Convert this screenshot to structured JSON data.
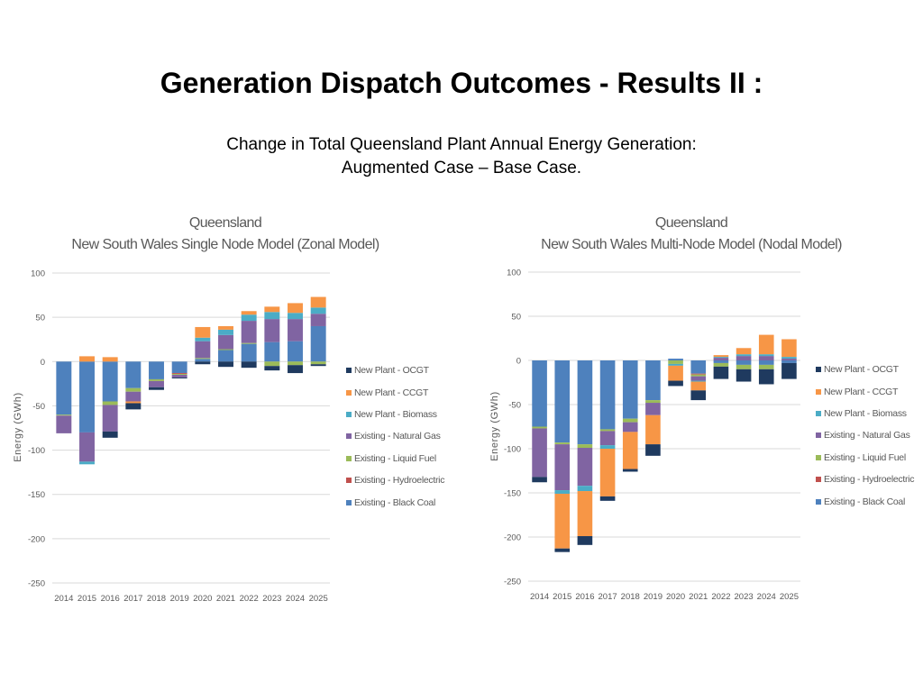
{
  "title": "Generation Dispatch Outcomes - Results II :",
  "subtitle": [
    "Change in Total Queensland Plant Annual Energy Generation:",
    "Augmented Case – Base Case."
  ],
  "colors": {
    "Existing - Black Coal": "#4e81bd",
    "Existing - Hydroelectric": "#c0504d",
    "Existing - Liquid Fuel": "#9bbb59",
    "Existing - Natural Gas": "#8064a2",
    "New Plant - Biomass": "#4bacc6",
    "New Plant - CCGT": "#f79646",
    "New Plant - OCGT": "#1f3a5f"
  },
  "chart_data": [
    {
      "type": "bar",
      "stacked": true,
      "title": [
        "Queensland",
        "New South Wales Single Node Model (Zonal Model)"
      ],
      "ylabel": "Energy (GWh)",
      "xlabel": "",
      "ylim": [
        -250,
        100
      ],
      "yticks": [
        100,
        50,
        0,
        -50,
        -100,
        -150,
        -200,
        -250
      ],
      "grid": true,
      "legend_position": "right",
      "categories": [
        "2014",
        "2015",
        "2016",
        "2017",
        "2018",
        "2019",
        "2020",
        "2021",
        "2022",
        "2023",
        "2024",
        "2025"
      ],
      "series": [
        {
          "name": "Existing - Black Coal",
          "values": [
            -60,
            -80,
            -45,
            -30,
            -20,
            -13,
            3,
            13,
            20,
            22,
            23,
            40
          ]
        },
        {
          "name": "Existing - Hydroelectric",
          "values": [
            0,
            0,
            0,
            0,
            0,
            -1,
            0,
            0,
            0,
            0,
            0,
            0
          ]
        },
        {
          "name": "Existing - Liquid Fuel",
          "values": [
            -1,
            0,
            -4,
            -4,
            -2,
            -1,
            1,
            1,
            1,
            -5,
            -4,
            -3
          ]
        },
        {
          "name": "Existing - Natural Gas",
          "values": [
            -20,
            -33,
            -30,
            -11,
            -7,
            -3,
            19,
            16,
            25,
            26,
            25,
            14
          ]
        },
        {
          "name": "New Plant - Biomass",
          "values": [
            0,
            -3,
            0,
            0,
            0,
            0,
            4,
            6,
            7,
            8,
            7,
            7
          ]
        },
        {
          "name": "New Plant - CCGT",
          "values": [
            0,
            6,
            5,
            -2,
            0,
            0,
            12,
            4,
            4,
            6,
            11,
            12
          ]
        },
        {
          "name": "New Plant - OCGT",
          "values": [
            0,
            0,
            -7,
            -7,
            -3,
            -1,
            -3,
            -6,
            -7,
            -5,
            -9,
            -2
          ]
        }
      ]
    },
    {
      "type": "bar",
      "stacked": true,
      "title": [
        "Queensland",
        "New South Wales Multi-Node Model (Nodal Model)"
      ],
      "ylabel": "Energy (GWh)",
      "xlabel": "",
      "ylim": [
        -250,
        100
      ],
      "yticks": [
        100,
        50,
        0,
        -50,
        -100,
        -150,
        -200,
        -250
      ],
      "grid": true,
      "legend_position": "right",
      "categories": [
        "2014",
        "2015",
        "2016",
        "2017",
        "2018",
        "2019",
        "2020",
        "2021",
        "2022",
        "2023",
        "2024",
        "2025"
      ],
      "series": [
        {
          "name": "Existing - Black Coal",
          "values": [
            -75,
            -93,
            -95,
            -78,
            -66,
            -45,
            2,
            -15,
            -3,
            -5,
            -5,
            -3
          ]
        },
        {
          "name": "Existing - Hydroelectric",
          "values": [
            0,
            0,
            0,
            0,
            0,
            0,
            0,
            -1,
            0,
            0,
            0,
            0
          ]
        },
        {
          "name": "Existing - Liquid Fuel",
          "values": [
            -2,
            -2,
            -4,
            -2,
            -4,
            -3,
            -4,
            -2,
            -4,
            -5,
            -5,
            0
          ]
        },
        {
          "name": "Existing - Natural Gas",
          "values": [
            -55,
            -52,
            -43,
            -16,
            -11,
            -14,
            0,
            -5,
            3,
            5,
            5,
            2
          ]
        },
        {
          "name": "New Plant - Biomass",
          "values": [
            0,
            -4,
            -6,
            -4,
            0,
            0,
            -2,
            -1,
            1,
            2,
            2,
            2
          ]
        },
        {
          "name": "New Plant - CCGT",
          "values": [
            0,
            -62,
            -51,
            -54,
            -42,
            -33,
            -17,
            -10,
            2,
            7,
            22,
            20
          ]
        },
        {
          "name": "New Plant - OCGT",
          "values": [
            -6,
            -4,
            -10,
            -5,
            -3,
            -13,
            -6,
            -11,
            -14,
            -14,
            -17,
            -18
          ]
        }
      ]
    }
  ]
}
